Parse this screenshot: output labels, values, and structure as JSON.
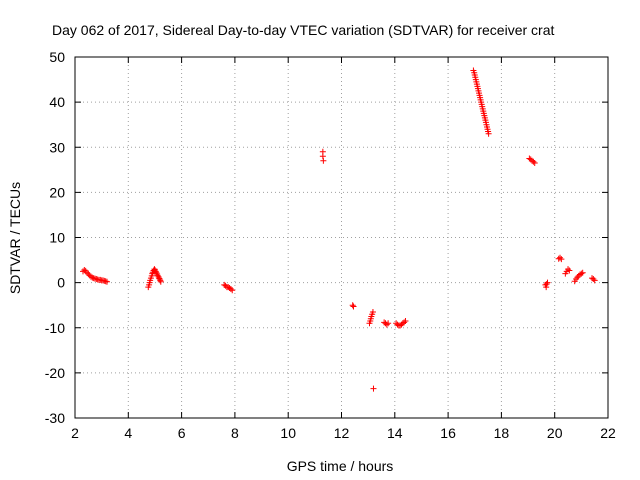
{
  "chart_data": {
    "type": "scatter",
    "title": "Day 062 of 2017, Sidereal Day-to-day VTEC variation (SDTVAR) for receiver crat",
    "xlabel": "GPS time / hours",
    "ylabel": "SDTVAR / TECUs",
    "xlim": [
      2,
      22
    ],
    "ylim": [
      -30,
      50
    ],
    "xticks": [
      2,
      4,
      6,
      8,
      10,
      12,
      14,
      16,
      18,
      20,
      22
    ],
    "yticks": [
      -30,
      -20,
      -10,
      0,
      10,
      20,
      30,
      40,
      50
    ],
    "xtick_labels": [
      "2",
      "4",
      "6",
      "8",
      "10",
      "12",
      "14",
      "16",
      "18",
      "20",
      "22"
    ],
    "ytick_labels": [
      "-30",
      "-20",
      "-10",
      "0",
      "10",
      "20",
      "30",
      "40",
      "50"
    ],
    "grid": true,
    "marker": "plus",
    "color": "#ff0000",
    "series": [
      {
        "name": "SDTVAR",
        "points": [
          [
            2.3,
            2.5
          ],
          [
            2.35,
            2.8
          ],
          [
            2.4,
            2.6
          ],
          [
            2.45,
            2.2
          ],
          [
            2.5,
            1.9
          ],
          [
            2.55,
            1.6
          ],
          [
            2.6,
            1.3
          ],
          [
            2.65,
            1.1
          ],
          [
            2.7,
            1.0
          ],
          [
            2.75,
            0.9
          ],
          [
            2.8,
            0.8
          ],
          [
            2.85,
            0.7
          ],
          [
            2.9,
            0.6
          ],
          [
            2.95,
            0.6
          ],
          [
            3.0,
            0.5
          ],
          [
            3.05,
            0.5
          ],
          [
            3.1,
            0.4
          ],
          [
            3.15,
            0.3
          ],
          [
            3.2,
            0.2
          ],
          [
            4.75,
            -1.0
          ],
          [
            4.78,
            -0.5
          ],
          [
            4.8,
            0.0
          ],
          [
            4.82,
            0.5
          ],
          [
            4.85,
            1.0
          ],
          [
            4.88,
            1.5
          ],
          [
            4.9,
            2.0
          ],
          [
            4.92,
            2.3
          ],
          [
            4.95,
            2.7
          ],
          [
            4.98,
            3.0
          ],
          [
            5.0,
            2.8
          ],
          [
            5.03,
            2.5
          ],
          [
            5.05,
            2.2
          ],
          [
            5.08,
            1.9
          ],
          [
            5.1,
            1.6
          ],
          [
            5.13,
            1.3
          ],
          [
            5.15,
            1.0
          ],
          [
            5.18,
            0.8
          ],
          [
            5.2,
            0.5
          ],
          [
            5.22,
            0.2
          ],
          [
            7.6,
            -0.5
          ],
          [
            7.65,
            -0.7
          ],
          [
            7.7,
            -1.0
          ],
          [
            7.75,
            -1.0
          ],
          [
            7.8,
            -1.2
          ],
          [
            7.85,
            -1.4
          ],
          [
            7.9,
            -1.7
          ],
          [
            11.3,
            29.0
          ],
          [
            11.3,
            28.0
          ],
          [
            11.32,
            27.0
          ],
          [
            12.42,
            -5.0
          ],
          [
            12.45,
            -5.3
          ],
          [
            13.05,
            -9.0
          ],
          [
            13.08,
            -8.5
          ],
          [
            13.1,
            -8.0
          ],
          [
            13.12,
            -7.5
          ],
          [
            13.15,
            -7.0
          ],
          [
            13.18,
            -6.5
          ],
          [
            13.2,
            -23.5
          ],
          [
            13.6,
            -8.8
          ],
          [
            13.65,
            -9.0
          ],
          [
            13.7,
            -9.3
          ],
          [
            13.75,
            -9.0
          ],
          [
            14.05,
            -9.0
          ],
          [
            14.1,
            -9.3
          ],
          [
            14.15,
            -9.5
          ],
          [
            14.2,
            -9.5
          ],
          [
            14.25,
            -9.3
          ],
          [
            14.3,
            -9.0
          ],
          [
            14.35,
            -8.8
          ],
          [
            14.4,
            -8.5
          ],
          [
            16.95,
            47.0
          ],
          [
            16.98,
            46.5
          ],
          [
            17.0,
            46.0
          ],
          [
            17.02,
            45.5
          ],
          [
            17.04,
            45.0
          ],
          [
            17.06,
            44.5
          ],
          [
            17.08,
            44.0
          ],
          [
            17.1,
            43.5
          ],
          [
            17.12,
            43.0
          ],
          [
            17.14,
            42.5
          ],
          [
            17.16,
            42.0
          ],
          [
            17.18,
            41.5
          ],
          [
            17.2,
            41.0
          ],
          [
            17.22,
            40.5
          ],
          [
            17.24,
            40.0
          ],
          [
            17.26,
            39.5
          ],
          [
            17.28,
            39.0
          ],
          [
            17.3,
            38.5
          ],
          [
            17.32,
            38.0
          ],
          [
            17.34,
            37.5
          ],
          [
            17.36,
            37.0
          ],
          [
            17.38,
            36.5
          ],
          [
            17.4,
            36.0
          ],
          [
            17.42,
            35.5
          ],
          [
            17.44,
            35.0
          ],
          [
            17.46,
            34.5
          ],
          [
            17.48,
            34.0
          ],
          [
            17.5,
            33.5
          ],
          [
            17.52,
            33.0
          ],
          [
            19.05,
            27.5
          ],
          [
            19.1,
            27.3
          ],
          [
            19.15,
            27.0
          ],
          [
            19.2,
            26.8
          ],
          [
            19.25,
            26.5
          ],
          [
            19.65,
            -0.5
          ],
          [
            19.68,
            -1.0
          ],
          [
            19.7,
            -0.3
          ],
          [
            19.73,
            0.0
          ],
          [
            20.15,
            5.3
          ],
          [
            20.2,
            5.5
          ],
          [
            20.25,
            5.2
          ],
          [
            20.4,
            2.0
          ],
          [
            20.45,
            2.5
          ],
          [
            20.5,
            3.0
          ],
          [
            20.55,
            2.7
          ],
          [
            20.75,
            0.3
          ],
          [
            20.8,
            0.8
          ],
          [
            20.85,
            1.2
          ],
          [
            20.9,
            1.5
          ],
          [
            20.95,
            1.8
          ],
          [
            21.0,
            2.0
          ],
          [
            21.05,
            2.2
          ],
          [
            21.4,
            1.0
          ],
          [
            21.45,
            0.8
          ],
          [
            21.5,
            0.5
          ]
        ]
      }
    ]
  }
}
